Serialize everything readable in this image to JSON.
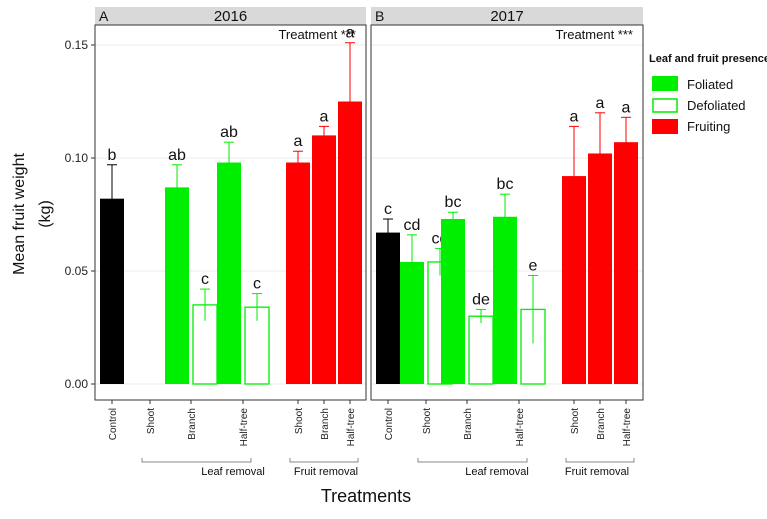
{
  "chart_data": {
    "type": "bar",
    "ylabel_line1": "Mean fruit weight",
    "ylabel_line2": "(kg)",
    "xlabel": "Treatments",
    "ylim": [
      0,
      0.15
    ],
    "yticks": [
      0.0,
      0.05,
      0.1,
      0.15
    ],
    "ytick_labels": [
      "0.00",
      "0.05",
      "0.10",
      "0.15"
    ],
    "grid": true,
    "legend": {
      "title": "Leaf and fruit presence",
      "position": "right",
      "items": [
        {
          "name": "Foliated",
          "color": "#00ee00",
          "style": "fill"
        },
        {
          "name": "Defoliated",
          "color": "#00ee00",
          "style": "outline"
        },
        {
          "name": "Fruiting",
          "color": "#ff0000",
          "style": "fill"
        }
      ]
    },
    "groups": [
      {
        "label": "Leaf removal"
      },
      {
        "label": "Fruit removal"
      }
    ],
    "panels": [
      {
        "letter": "A",
        "title": "2016",
        "annotation": "Treatment ***",
        "slots": [
          {
            "label": "Control",
            "bars": [
              {
                "value": 0.082,
                "error": 0.015,
                "style": "control",
                "letter": "b"
              }
            ]
          },
          {
            "label": "Shoot",
            "bars": []
          },
          {
            "label": "Branch",
            "bars": [
              {
                "value": 0.087,
                "error": 0.01,
                "style": "foliated",
                "letter": "ab"
              },
              {
                "value": 0.035,
                "error": 0.007,
                "style": "defoliated",
                "letter": "c"
              }
            ]
          },
          {
            "label": "Half-tree",
            "bars": [
              {
                "value": 0.098,
                "error": 0.009,
                "style": "foliated",
                "letter": "ab"
              },
              {
                "value": 0.034,
                "error": 0.006,
                "style": "defoliated",
                "letter": "c"
              }
            ]
          },
          {
            "label": "Shoot",
            "bars": [
              {
                "value": 0.098,
                "error": 0.005,
                "style": "fruiting",
                "letter": "a"
              }
            ]
          },
          {
            "label": "Branch",
            "bars": [
              {
                "value": 0.11,
                "error": 0.004,
                "style": "fruiting",
                "letter": "a"
              }
            ]
          },
          {
            "label": "Half-tree",
            "bars": [
              {
                "value": 0.125,
                "error": 0.026,
                "style": "fruiting",
                "letter": "a"
              }
            ]
          }
        ]
      },
      {
        "letter": "B",
        "title": "2017",
        "annotation": "Treatment ***",
        "slots": [
          {
            "label": "Control",
            "bars": [
              {
                "value": 0.067,
                "error": 0.006,
                "style": "control",
                "letter": "c"
              }
            ]
          },
          {
            "label": "Shoot",
            "bars": [
              {
                "value": 0.054,
                "error": 0.012,
                "style": "foliated",
                "letter": "cd"
              },
              {
                "value": 0.054,
                "error": 0.006,
                "style": "defoliated",
                "letter": "cd"
              }
            ]
          },
          {
            "label": "Branch",
            "bars": [
              {
                "value": 0.073,
                "error": 0.003,
                "style": "foliated",
                "letter": "bc"
              },
              {
                "value": 0.03,
                "error": 0.003,
                "style": "defoliated",
                "letter": "de"
              }
            ]
          },
          {
            "label": "Half-tree",
            "bars": [
              {
                "value": 0.074,
                "error": 0.01,
                "style": "foliated",
                "letter": "bc"
              },
              {
                "value": 0.033,
                "error": 0.015,
                "style": "defoliated",
                "letter": "e"
              }
            ]
          },
          {
            "label": "Shoot",
            "bars": [
              {
                "value": 0.092,
                "error": 0.022,
                "style": "fruiting",
                "letter": "a"
              }
            ]
          },
          {
            "label": "Branch",
            "bars": [
              {
                "value": 0.102,
                "error": 0.018,
                "style": "fruiting",
                "letter": "a"
              }
            ]
          },
          {
            "label": "Half-tree",
            "bars": [
              {
                "value": 0.107,
                "error": 0.011,
                "style": "fruiting",
                "letter": "a"
              }
            ]
          }
        ]
      }
    ]
  },
  "colors": {
    "control": "#000000",
    "foliated": "#00ee00",
    "fruiting": "#ff0000",
    "strip": "#d9d9d9",
    "grid": "#ebebeb",
    "axis": "#333333"
  }
}
